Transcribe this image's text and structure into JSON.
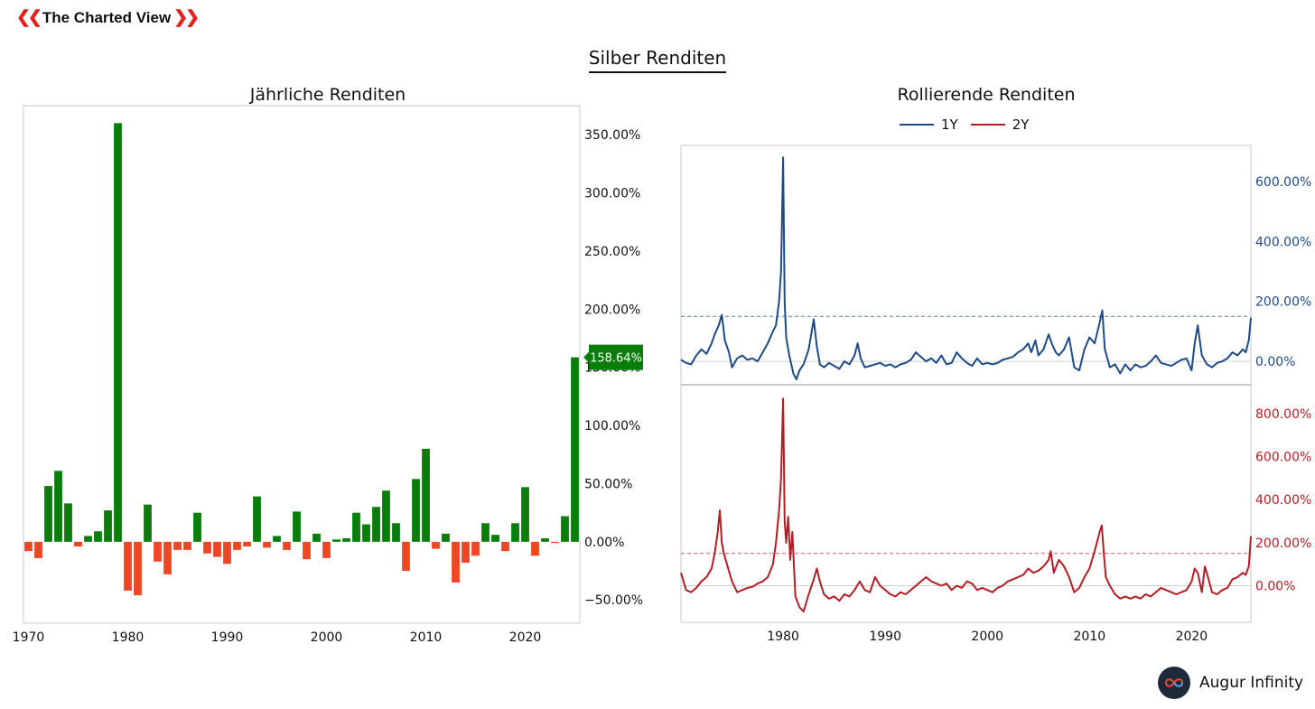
{
  "brand": {
    "name": "The Charted View",
    "left_icon": "double-chevron-left-icon",
    "right_icon": "double-chevron-right-icon",
    "color": "#e3201b"
  },
  "title": "Silber Renditen",
  "footer": {
    "brand": "Augur Infinity",
    "logo_icon": "infinity-icon"
  },
  "chart_data": [
    {
      "type": "bar",
      "title": "Jährliche Renditen",
      "xlabel": "",
      "ylabel": "",
      "x_ticks": [
        "1970",
        "1980",
        "1990",
        "2000",
        "2010",
        "2020"
      ],
      "y_ticks": [
        "−50.00%",
        "0.00%",
        "50.00%",
        "100.00%",
        "150.00%",
        "200.00%",
        "250.00%",
        "300.00%",
        "350.00%"
      ],
      "ylim": [
        -70,
        375
      ],
      "xlim": [
        1969.5,
        2025.5
      ],
      "positive_color": "#0a7d0a",
      "negative_color": "#ee4725",
      "last_value_label": "158.64%",
      "years": [
        1970,
        1971,
        1972,
        1973,
        1974,
        1975,
        1976,
        1977,
        1978,
        1979,
        1980,
        1981,
        1982,
        1983,
        1984,
        1985,
        1986,
        1987,
        1988,
        1989,
        1990,
        1991,
        1992,
        1993,
        1994,
        1995,
        1996,
        1997,
        1998,
        1999,
        2000,
        2001,
        2002,
        2003,
        2004,
        2005,
        2006,
        2007,
        2008,
        2009,
        2010,
        2011,
        2012,
        2013,
        2014,
        2015,
        2016,
        2017,
        2018,
        2019,
        2020,
        2021,
        2022,
        2023,
        2024,
        2025
      ],
      "values": [
        -8,
        -14,
        48,
        61,
        33,
        -4,
        5,
        9,
        27,
        360,
        -42,
        -46,
        32,
        -17,
        -28,
        -7,
        -7,
        25,
        -10,
        -13,
        -19,
        -7,
        -4,
        39,
        -5,
        5,
        -7,
        26,
        -15,
        7,
        -14,
        2,
        3,
        25,
        15,
        30,
        44,
        16,
        -25,
        54,
        80,
        -6,
        7,
        -35,
        -18,
        -12,
        16,
        6,
        -8,
        16,
        47,
        -12,
        3,
        -1,
        22,
        158.64
      ]
    },
    {
      "type": "line",
      "title": "Rollierende Renditen",
      "x_ticks": [
        "1980",
        "1990",
        "2000",
        "2010",
        "2020"
      ],
      "xlim": [
        1970,
        2025.8
      ],
      "series": [
        {
          "name": "1Y",
          "color": "#1f4a86",
          "ylim": [
            -75,
            720
          ],
          "y_ticks": [
            "0.00%",
            "200.00%",
            "400.00%",
            "600.00%"
          ],
          "reference_line": 150,
          "x": [
            1970,
            1970.5,
            1971,
            1971.5,
            1972,
            1972.5,
            1973,
            1973.3,
            1973.7,
            1974,
            1974.3,
            1974.7,
            1975,
            1975.5,
            1976,
            1976.5,
            1977,
            1977.5,
            1978,
            1978.5,
            1979,
            1979.3,
            1979.6,
            1979.8,
            1980,
            1980.15,
            1980.3,
            1980.6,
            1981,
            1981.3,
            1981.6,
            1982,
            1982.5,
            1983,
            1983.3,
            1983.6,
            1984,
            1984.5,
            1985,
            1985.5,
            1986,
            1986.5,
            1987,
            1987.3,
            1987.6,
            1988,
            1988.5,
            1989,
            1989.5,
            1990,
            1990.5,
            1991,
            1991.5,
            1992,
            1992.5,
            1993,
            1993.5,
            1994,
            1994.5,
            1995,
            1995.5,
            1996,
            1996.5,
            1997,
            1997.5,
            1998,
            1998.5,
            1999,
            1999.5,
            2000,
            2000.5,
            2001,
            2001.5,
            2002,
            2002.5,
            2003,
            2003.5,
            2004,
            2004.3,
            2004.7,
            2005,
            2005.5,
            2006,
            2006.3,
            2006.7,
            2007,
            2007.5,
            2008,
            2008.5,
            2009,
            2009.5,
            2010,
            2010.5,
            2011,
            2011.25,
            2011.5,
            2012,
            2012.5,
            2013,
            2013.5,
            2014,
            2014.5,
            2015,
            2015.5,
            2016,
            2016.5,
            2017,
            2017.5,
            2018,
            2018.5,
            2019,
            2019.5,
            2020,
            2020.3,
            2020.6,
            2021,
            2021.5,
            2022,
            2022.5,
            2023,
            2023.5,
            2024,
            2024.5,
            2025,
            2025.3,
            2025.6,
            2025.8
          ],
          "values": [
            5,
            -5,
            -10,
            20,
            40,
            25,
            60,
            90,
            120,
            155,
            70,
            30,
            -20,
            10,
            20,
            5,
            10,
            0,
            30,
            60,
            100,
            120,
            200,
            300,
            680,
            200,
            80,
            20,
            -40,
            -60,
            -30,
            -10,
            40,
            140,
            50,
            -10,
            -20,
            -5,
            -15,
            -25,
            0,
            -10,
            20,
            60,
            10,
            -20,
            -15,
            -10,
            -5,
            -15,
            -10,
            -20,
            -10,
            -5,
            5,
            30,
            15,
            0,
            10,
            -5,
            20,
            -10,
            -5,
            30,
            10,
            -5,
            -15,
            10,
            -10,
            -5,
            -10,
            -5,
            5,
            10,
            15,
            30,
            40,
            60,
            30,
            70,
            20,
            40,
            90,
            60,
            30,
            20,
            40,
            80,
            -20,
            -30,
            40,
            80,
            60,
            130,
            170,
            40,
            -20,
            -10,
            -40,
            -10,
            -30,
            -10,
            -20,
            -15,
            0,
            20,
            -5,
            -10,
            -15,
            -5,
            5,
            10,
            -30,
            60,
            120,
            20,
            -10,
            -20,
            -5,
            0,
            10,
            30,
            20,
            40,
            30,
            70,
            145
          ]
        },
        {
          "name": "2Y",
          "color": "#b51d24",
          "ylim": [
            -170,
            930
          ],
          "y_ticks": [
            "0.00%",
            "200.00%",
            "400.00%",
            "600.00%",
            "800.00%"
          ],
          "reference_line": 150,
          "x": [
            1970,
            1970.5,
            1971,
            1971.5,
            1972,
            1972.5,
            1973,
            1973.3,
            1973.6,
            1973.8,
            1974,
            1974.2,
            1974.5,
            1975,
            1975.5,
            1976,
            1976.5,
            1977,
            1977.5,
            1978,
            1978.5,
            1979,
            1979.3,
            1979.6,
            1979.8,
            1980,
            1980.15,
            1980.3,
            1980.5,
            1980.7,
            1980.9,
            1981.2,
            1981.6,
            1982,
            1982.5,
            1983,
            1983.3,
            1983.6,
            1984,
            1984.5,
            1985,
            1985.5,
            1986,
            1986.5,
            1987,
            1987.5,
            1988,
            1988.5,
            1989,
            1989.5,
            1990,
            1990.5,
            1991,
            1991.5,
            1992,
            1992.5,
            1993,
            1993.5,
            1994,
            1994.5,
            1995,
            1995.5,
            1996,
            1996.5,
            1997,
            1997.5,
            1998,
            1998.5,
            1999,
            1999.5,
            2000,
            2000.5,
            2001,
            2001.5,
            2002,
            2002.5,
            2003,
            2003.5,
            2004,
            2004.5,
            2005,
            2005.5,
            2006,
            2006.2,
            2006.5,
            2007,
            2007.5,
            2008,
            2008.5,
            2009,
            2009.5,
            2010,
            2010.5,
            2011,
            2011.2,
            2011.4,
            2011.6,
            2012,
            2012.5,
            2013,
            2013.5,
            2014,
            2014.5,
            2015,
            2015.5,
            2016,
            2016.5,
            2017,
            2017.5,
            2018,
            2018.5,
            2019,
            2019.5,
            2020,
            2020.3,
            2020.6,
            2021,
            2021.3,
            2021.6,
            2022,
            2022.5,
            2023,
            2023.5,
            2024,
            2024.5,
            2025,
            2025.3,
            2025.6,
            2025.8
          ],
          "values": [
            60,
            -20,
            -30,
            -10,
            20,
            40,
            80,
            150,
            250,
            350,
            200,
            150,
            100,
            20,
            -30,
            -20,
            -10,
            -5,
            10,
            20,
            40,
            100,
            200,
            350,
            500,
            870,
            300,
            200,
            320,
            120,
            250,
            -50,
            -100,
            -120,
            -40,
            30,
            80,
            20,
            -40,
            -60,
            -50,
            -70,
            -40,
            -50,
            -20,
            20,
            -20,
            -30,
            40,
            0,
            -20,
            -40,
            -50,
            -30,
            -40,
            -20,
            0,
            20,
            40,
            20,
            10,
            0,
            10,
            -20,
            0,
            -10,
            20,
            10,
            -20,
            -10,
            -20,
            -30,
            -10,
            0,
            20,
            30,
            40,
            50,
            80,
            60,
            70,
            90,
            120,
            160,
            60,
            120,
            90,
            40,
            -30,
            -10,
            40,
            80,
            160,
            250,
            280,
            150,
            40,
            0,
            -40,
            -60,
            -50,
            -60,
            -50,
            -60,
            -40,
            -50,
            -30,
            -10,
            -20,
            -30,
            -40,
            -30,
            -20,
            20,
            80,
            60,
            -30,
            90,
            40,
            -30,
            -40,
            -20,
            -10,
            30,
            40,
            60,
            50,
            90,
            230
          ]
        }
      ]
    }
  ]
}
